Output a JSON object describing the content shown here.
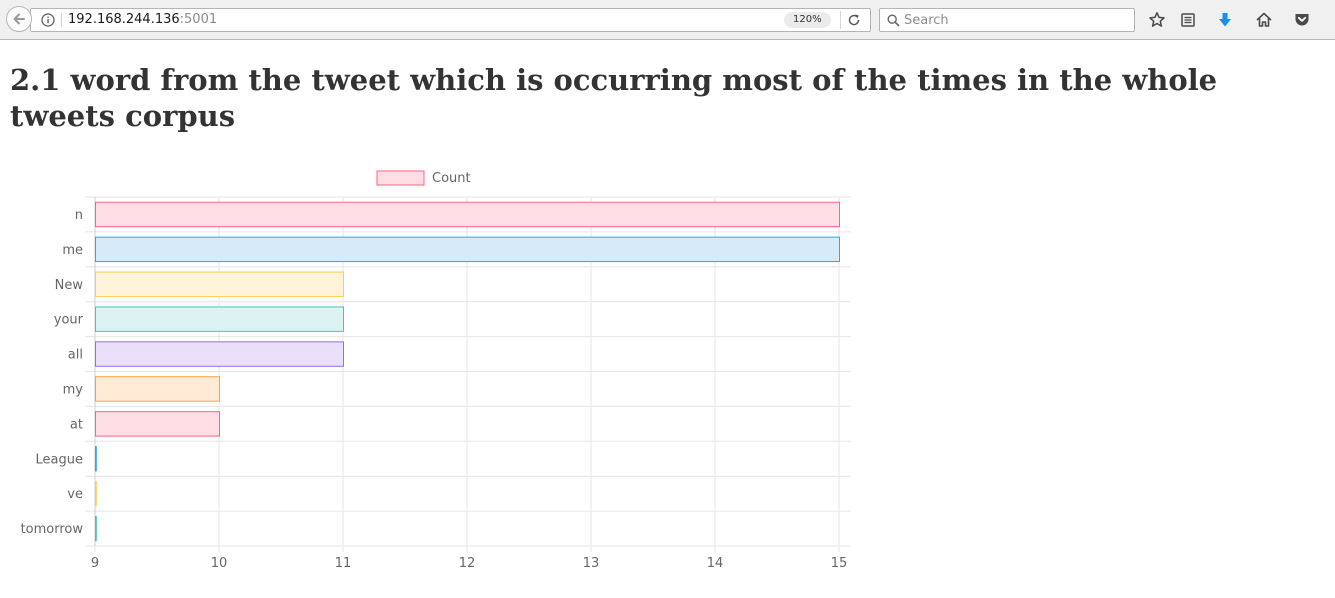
{
  "browser": {
    "url_host": "192.168.244.136",
    "url_port": ":5001",
    "zoom": "120%",
    "search_placeholder": "Search"
  },
  "page": {
    "title": "2.1 word from the tweet which is occurring most of the times in the whole tweets corpus"
  },
  "chart_data": {
    "type": "bar",
    "orientation": "horizontal",
    "categories": [
      "n",
      "me",
      "New",
      "your",
      "all",
      "my",
      "at",
      "League",
      "ve",
      "tomorrow"
    ],
    "series": [
      {
        "name": "Count",
        "values": [
          15,
          15,
          11,
          11,
          11,
          10,
          10,
          9,
          9,
          9
        ],
        "fill_colors": [
          "#ffdfe5",
          "#d6eaf9",
          "#fff3da",
          "#dcf3f3",
          "#ebe0fb",
          "#ffebd6",
          "#ffdfe5",
          "#d6eaf9",
          "#fff3da",
          "#dcf3f3"
        ],
        "border_colors": [
          "#ff6384",
          "#36a2eb",
          "#ffcd56",
          "#4bc0c0",
          "#9966ff",
          "#ff9f40",
          "#ff6384",
          "#36a2eb",
          "#ffcd56",
          "#4bc0c0"
        ]
      }
    ],
    "xlim": [
      9,
      15
    ],
    "xticks": [
      9,
      10,
      11,
      12,
      13,
      14,
      15
    ],
    "grid": true,
    "legend_position": "top",
    "legend_fill": "#ffdfe5",
    "legend_border": "#ff6384"
  }
}
